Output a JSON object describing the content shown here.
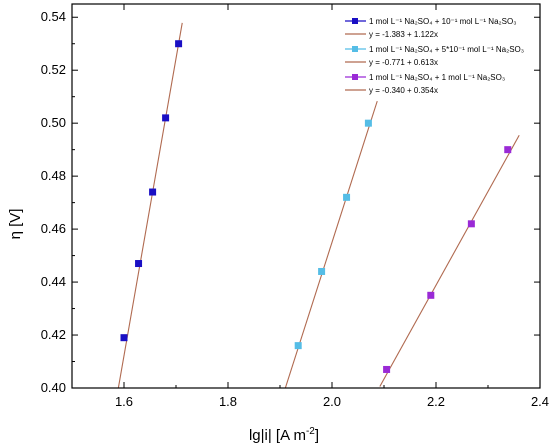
{
  "chart_data": {
    "type": "scatter",
    "xlabel": "lg|i| [A m",
    "xlabel_sup": "-2",
    "xlabel_close": "]",
    "ylabel": "η [V]",
    "xlim": [
      1.5,
      2.4
    ],
    "ylim": [
      0.4,
      0.545
    ],
    "x_ticks": [
      1.6,
      1.8,
      2.0,
      2.2,
      2.4
    ],
    "x_tick_labels": [
      "1.6",
      "1.8",
      "2.0",
      "2.2",
      "2.4"
    ],
    "y_ticks": [
      0.4,
      0.42,
      0.44,
      0.46,
      0.48,
      0.5,
      0.52,
      0.54
    ],
    "y_tick_labels": [
      "0.40",
      "0.42",
      "0.44",
      "0.46",
      "0.48",
      "0.50",
      "0.52",
      "0.54"
    ],
    "grid": false,
    "legend_position": "top-right",
    "fit_line_color": "#b06a50",
    "series": [
      {
        "name": "1 mol L⁻¹ Na₂SO₄ + 10⁻¹ mol L⁻¹ Na₂SO₃",
        "color": "#1a0fc4",
        "marker": "square",
        "points": [
          [
            1.6,
            0.419
          ],
          [
            1.628,
            0.447
          ],
          [
            1.655,
            0.474
          ],
          [
            1.68,
            0.502
          ],
          [
            1.705,
            0.53
          ]
        ],
        "fit": {
          "label": "y = -1.383 + 1.122x",
          "intercept": -1.383,
          "slope": 1.122,
          "x_range": [
            1.585,
            1.712
          ]
        }
      },
      {
        "name": "1 mol L⁻¹ Na₂SO₄ + 5*10⁻¹ mol L⁻¹ Na₂SO₃",
        "color": "#55bde6",
        "marker": "square",
        "points": [
          [
            1.935,
            0.416
          ],
          [
            1.98,
            0.444
          ],
          [
            2.028,
            0.472
          ],
          [
            2.07,
            0.5
          ]
        ],
        "fit": {
          "label": "y = -0.771 + 0.613x",
          "intercept": -0.771,
          "slope": 0.613,
          "x_range": [
            1.91,
            2.087
          ]
        }
      },
      {
        "name": "1 mol L⁻¹ Na₂SO₄ + 1 mol L⁻¹ Na₂SO₃",
        "color": "#9a2ad6",
        "marker": "square",
        "points": [
          [
            2.105,
            0.407
          ],
          [
            2.19,
            0.435
          ],
          [
            2.268,
            0.462
          ],
          [
            2.338,
            0.49
          ]
        ],
        "fit": {
          "label": "y = -0.340 + 0.354x",
          "intercept": -0.34,
          "slope": 0.354,
          "x_range": [
            2.092,
            2.36
          ]
        }
      }
    ]
  }
}
